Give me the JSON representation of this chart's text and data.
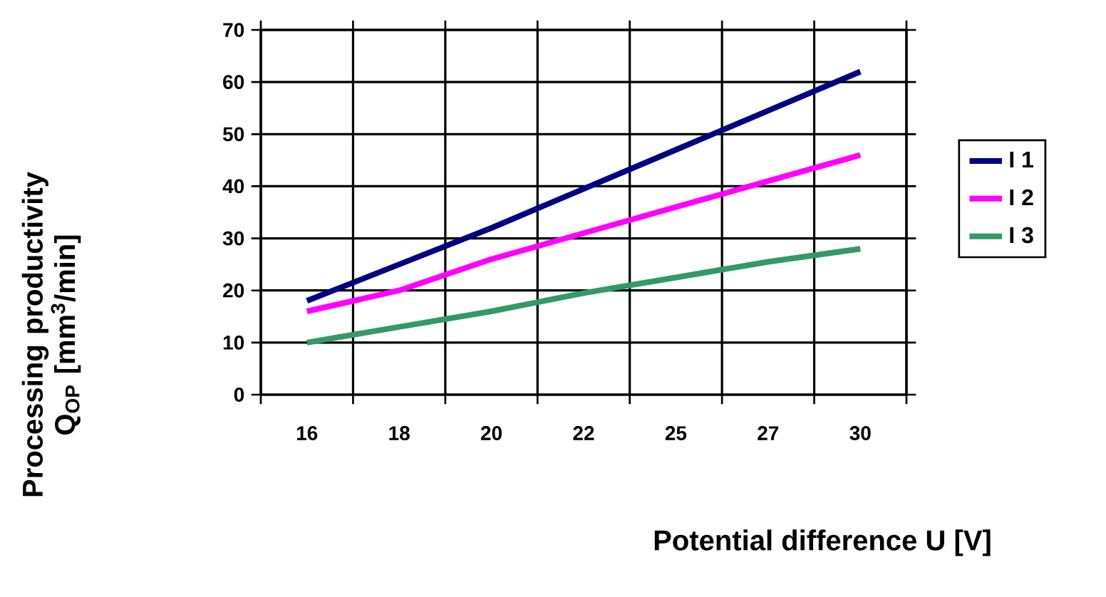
{
  "chart_data": {
    "type": "line",
    "xlabel": "Potential difference U [V]",
    "ylabel": "Processing productivity Q$_{OP}$ [mm$^{3}$/min]",
    "categories": [
      "16",
      "18",
      "20",
      "22",
      "25",
      "27",
      "30"
    ],
    "series": [
      {
        "name": "I 1",
        "color": "#000080",
        "values": [
          18,
          25,
          32,
          39.5,
          47,
          54.5,
          62
        ]
      },
      {
        "name": "I 2",
        "color": "#ff00ff",
        "values": [
          16,
          20,
          26,
          31,
          36,
          41,
          46
        ]
      },
      {
        "name": "I 3",
        "color": "#339966",
        "values": [
          10,
          13,
          16,
          19.5,
          22.5,
          25.5,
          28
        ]
      }
    ],
    "ylim": [
      0,
      70
    ],
    "yticks": [
      0,
      10,
      20,
      30,
      40,
      50,
      60,
      70
    ],
    "grid": true,
    "legend": "right",
    "line_style": "solid"
  }
}
